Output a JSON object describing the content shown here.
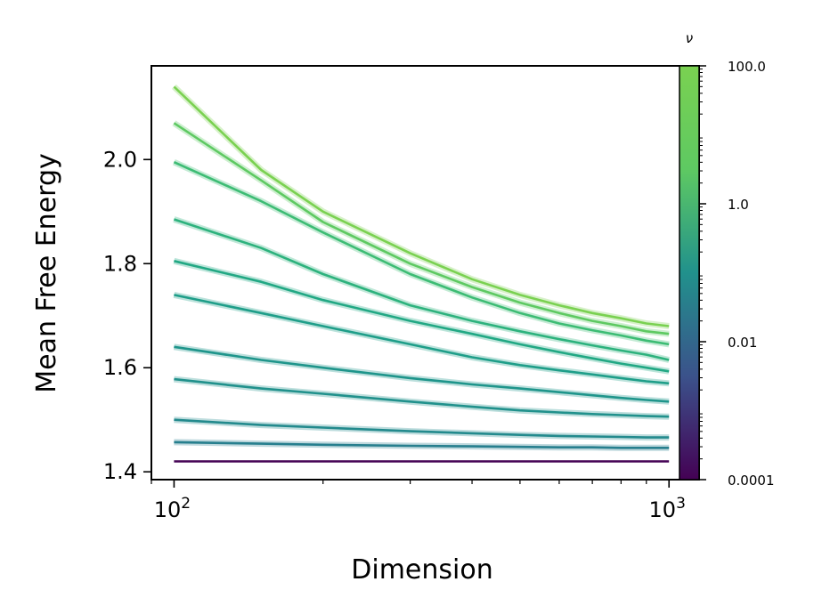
{
  "chart_data": {
    "type": "line",
    "xlabel": "Dimension",
    "ylabel": "Mean Free Energy",
    "xscale": "log",
    "xlim": [
      90,
      1050
    ],
    "ylim": [
      1.385,
      2.18
    ],
    "x_ticks": [
      {
        "value": 100,
        "label_base": "10",
        "label_exp": "2"
      },
      {
        "value": 1000,
        "label_base": "10",
        "label_exp": "3"
      }
    ],
    "y_ticks": [
      {
        "value": 1.4,
        "label": "1.4"
      },
      {
        "value": 1.6,
        "label": "1.6"
      },
      {
        "value": 1.8,
        "label": "1.8"
      },
      {
        "value": 2.0,
        "label": "2.0"
      }
    ],
    "grid": false,
    "colorbar": {
      "title": "ν",
      "scale": "log",
      "range": [
        0.0001,
        100.0
      ],
      "colormap": "viridis",
      "colormap_stops": [
        "#440154",
        "#3b528b",
        "#21918c",
        "#5ec962",
        "#7ad151"
      ],
      "ticks": [
        {
          "value": 100.0,
          "label": "100.0"
        },
        {
          "value": 1.0,
          "label": "1.0"
        },
        {
          "value": 0.01,
          "label": "0.01"
        },
        {
          "value": 0.0001,
          "label": "0.0001"
        }
      ]
    },
    "x": [
      100,
      150,
      200,
      300,
      400,
      500,
      600,
      700,
      800,
      900,
      1000
    ],
    "series": [
      {
        "color": "#7ad151",
        "values": [
          2.14,
          1.98,
          1.9,
          1.82,
          1.77,
          1.74,
          1.72,
          1.705,
          1.695,
          1.685,
          1.68
        ]
      },
      {
        "color": "#5ec962",
        "values": [
          2.07,
          1.96,
          1.88,
          1.8,
          1.755,
          1.725,
          1.705,
          1.69,
          1.68,
          1.67,
          1.665
        ]
      },
      {
        "color": "#3dbc74",
        "values": [
          1.995,
          1.92,
          1.86,
          1.78,
          1.735,
          1.705,
          1.685,
          1.672,
          1.662,
          1.652,
          1.645
        ]
      },
      {
        "color": "#2db27d",
        "values": [
          1.885,
          1.83,
          1.78,
          1.72,
          1.69,
          1.67,
          1.655,
          1.643,
          1.633,
          1.625,
          1.615
        ]
      },
      {
        "color": "#22a884",
        "values": [
          1.805,
          1.765,
          1.73,
          1.69,
          1.665,
          1.645,
          1.63,
          1.618,
          1.608,
          1.6,
          1.593
        ]
      },
      {
        "color": "#1f9e89",
        "values": [
          1.74,
          1.705,
          1.68,
          1.645,
          1.62,
          1.605,
          1.595,
          1.587,
          1.58,
          1.574,
          1.57
        ]
      },
      {
        "color": "#1f958b",
        "values": [
          1.64,
          1.615,
          1.6,
          1.58,
          1.568,
          1.56,
          1.553,
          1.547,
          1.542,
          1.538,
          1.535
        ]
      },
      {
        "color": "#21918c",
        "values": [
          1.578,
          1.56,
          1.55,
          1.535,
          1.525,
          1.518,
          1.514,
          1.511,
          1.509,
          1.507,
          1.506
        ]
      },
      {
        "color": "#238a8d",
        "values": [
          1.5,
          1.49,
          1.485,
          1.478,
          1.474,
          1.471,
          1.469,
          1.468,
          1.467,
          1.466,
          1.466
        ]
      },
      {
        "color": "#277f8e",
        "values": [
          1.457,
          1.454,
          1.452,
          1.45,
          1.449,
          1.448,
          1.447,
          1.447,
          1.446,
          1.446,
          1.446
        ]
      },
      {
        "color": "#440154",
        "values": [
          1.42,
          1.42,
          1.42,
          1.42,
          1.42,
          1.42,
          1.42,
          1.42,
          1.42,
          1.42,
          1.42
        ]
      }
    ]
  }
}
